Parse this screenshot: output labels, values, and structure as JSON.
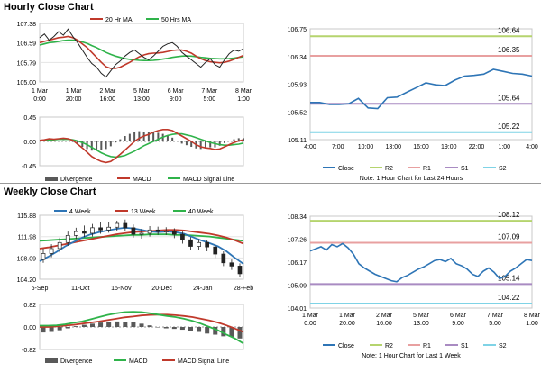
{
  "sections": {
    "hourly_title": "Hourly Close Chart",
    "weekly_title": "Weekly Close Chart"
  },
  "colors": {
    "close": "#2e75b6",
    "ma_short": "#c0392b",
    "ma_long": "#2fb34a",
    "r2": "#b5d46e",
    "r1": "#e8a0a0",
    "s1": "#a98bc2",
    "s2": "#7fd3e6",
    "divergence": "#595959",
    "candle": "#222222"
  },
  "chart_data": [
    {
      "id": "hourly_price",
      "type": "line",
      "legend": [
        "20 Hr MA",
        "50 Hrs MA"
      ],
      "y_ticks": [
        "107.38",
        "106.59",
        "105.79",
        "105.00"
      ],
      "ylim": [
        105.0,
        107.38
      ],
      "x_ticks": [
        "1 Mar\n0:00",
        "1 Mar\n20:00",
        "2 Mar\n16:00",
        "5 Mar\n13:00",
        "6 Mar\n9:00",
        "7 Mar\n5:00",
        "8 Mar\n1:00"
      ],
      "series": [
        {
          "name": "Close",
          "values": [
            106.8,
            106.95,
            106.7,
            106.85,
            107.05,
            106.9,
            107.15,
            106.85,
            106.6,
            106.3,
            106.0,
            105.75,
            105.6,
            105.35,
            105.2,
            105.45,
            105.7,
            105.85,
            106.05,
            106.2,
            106.3,
            106.15,
            106.0,
            105.9,
            106.05,
            106.25,
            106.45,
            106.55,
            106.6,
            106.45,
            106.2,
            106.05,
            105.9,
            105.75,
            105.6,
            105.8,
            105.95,
            105.7,
            105.6,
            105.9,
            106.15,
            106.3,
            106.25,
            106.35
          ]
        },
        {
          "name": "20 Hr MA",
          "values": [
            106.6,
            106.65,
            106.7,
            106.75,
            106.8,
            106.82,
            106.85,
            106.8,
            106.7,
            106.55,
            106.4,
            106.2,
            106.0,
            105.8,
            105.62,
            105.55,
            105.55,
            105.6,
            105.7,
            105.8,
            105.92,
            106.02,
            106.1,
            106.15,
            106.17,
            106.18,
            106.2,
            106.24,
            106.28,
            106.3,
            106.3,
            106.25,
            106.17,
            106.05,
            105.95,
            105.87,
            105.82,
            105.8,
            105.78,
            105.8,
            105.85,
            105.92,
            106.0,
            106.08
          ]
        },
        {
          "name": "50 Hrs MA",
          "values": [
            106.5,
            106.55,
            106.6,
            106.62,
            106.65,
            106.68,
            106.7,
            106.7,
            106.68,
            106.63,
            106.57,
            106.48,
            106.4,
            106.3,
            106.2,
            106.12,
            106.05,
            106.0,
            105.95,
            105.92,
            105.9,
            105.88,
            105.87,
            105.87,
            105.88,
            105.9,
            105.93,
            105.96,
            106.0,
            106.03,
            106.05,
            106.06,
            106.05,
            106.03,
            106.0,
            105.98,
            105.96,
            105.95,
            105.94,
            105.94,
            105.95,
            105.97,
            106.0,
            106.02
          ]
        }
      ]
    },
    {
      "id": "hourly_macd",
      "type": "line",
      "y_ticks": [
        "0.45",
        "0.00",
        "-0.45"
      ],
      "ylim": [
        -0.45,
        0.45
      ],
      "legend": [
        "Divergence",
        "MACD",
        "MACD Signal Line"
      ],
      "series": [
        {
          "name": "MACD",
          "values": [
            0.02,
            0.03,
            0.05,
            0.04,
            0.05,
            0.06,
            0.05,
            0.02,
            -0.05,
            -0.12,
            -0.2,
            -0.28,
            -0.33,
            -0.37,
            -0.39,
            -0.37,
            -0.31,
            -0.24,
            -0.16,
            -0.08,
            0.0,
            0.06,
            0.1,
            0.13,
            0.17,
            0.2,
            0.22,
            0.22,
            0.2,
            0.15,
            0.1,
            0.05,
            0.0,
            -0.06,
            -0.1,
            -0.12,
            -0.13,
            -0.15,
            -0.14,
            -0.1,
            -0.06,
            -0.02,
            0.01,
            0.03
          ]
        },
        {
          "name": "MACD Signal Line",
          "values": [
            0.02,
            0.02,
            0.03,
            0.03,
            0.04,
            0.04,
            0.04,
            0.03,
            0.01,
            -0.02,
            -0.06,
            -0.11,
            -0.16,
            -0.21,
            -0.25,
            -0.28,
            -0.29,
            -0.28,
            -0.26,
            -0.22,
            -0.18,
            -0.13,
            -0.08,
            -0.04,
            0.0,
            0.04,
            0.08,
            0.11,
            0.13,
            0.14,
            0.14,
            0.12,
            0.1,
            0.07,
            0.04,
            0.01,
            -0.02,
            -0.04,
            -0.06,
            -0.07,
            -0.07,
            -0.06,
            -0.05,
            -0.03
          ]
        },
        {
          "name": "Divergence",
          "values": [
            0.0,
            0.01,
            0.02,
            0.01,
            0.01,
            0.02,
            0.01,
            -0.01,
            -0.06,
            -0.1,
            -0.14,
            -0.17,
            -0.17,
            -0.16,
            -0.14,
            -0.09,
            -0.02,
            0.04,
            0.1,
            0.14,
            0.18,
            0.19,
            0.18,
            0.17,
            0.17,
            0.16,
            0.14,
            0.11,
            0.07,
            0.01,
            -0.04,
            -0.07,
            -0.1,
            -0.13,
            -0.14,
            -0.13,
            -0.11,
            -0.11,
            -0.08,
            -0.03,
            0.01,
            0.04,
            0.06,
            0.06
          ]
        }
      ]
    },
    {
      "id": "hourly_24h",
      "type": "line",
      "y_ticks": [
        "106.75",
        "106.34",
        "105.93",
        "105.52",
        "105.11"
      ],
      "ylim": [
        105.11,
        106.75
      ],
      "x_ticks": [
        "4:00",
        "7:00",
        "10:00",
        "13:00",
        "16:00",
        "19:00",
        "22:00",
        "1:00",
        "4:00"
      ],
      "levels": [
        {
          "name": "R2",
          "value": 106.64,
          "label": "106.64"
        },
        {
          "name": "R1",
          "value": 106.35,
          "label": "106.35"
        },
        {
          "name": "S1",
          "value": 105.64,
          "label": "105.64"
        },
        {
          "name": "S2",
          "value": 105.22,
          "label": "105.22"
        }
      ],
      "legend": [
        "Close",
        "R2",
        "R1",
        "S1",
        "S2"
      ],
      "note": "Note: 1 Hour Chart for Last 24 Hours",
      "series": [
        {
          "name": "Close",
          "values": [
            105.66,
            105.66,
            105.63,
            105.63,
            105.64,
            105.72,
            105.58,
            105.57,
            105.73,
            105.74,
            105.81,
            105.88,
            105.95,
            105.92,
            105.91,
            105.99,
            106.05,
            106.06,
            106.08,
            106.15,
            106.12,
            106.09,
            106.08,
            106.05
          ]
        }
      ]
    },
    {
      "id": "weekly_price",
      "type": "line",
      "legend": [
        "4 Week",
        "13 Week",
        "40 Week"
      ],
      "y_ticks": [
        "115.88",
        "111.98",
        "108.09",
        "104.20"
      ],
      "ylim": [
        104.2,
        115.88
      ],
      "x_ticks": [
        "6-Sep",
        "11-Oct",
        "15-Nov",
        "20-Dec",
        "24-Jan",
        "28-Feb"
      ],
      "candles": [
        {
          "open": 107.8,
          "close": 108.9,
          "high": 109.8,
          "low": 107.2
        },
        {
          "open": 108.9,
          "close": 109.8,
          "high": 110.6,
          "low": 108.2
        },
        {
          "open": 109.8,
          "close": 110.9,
          "high": 111.8,
          "low": 109.1
        },
        {
          "open": 110.9,
          "close": 112.2,
          "high": 112.9,
          "low": 110.3
        },
        {
          "open": 112.2,
          "close": 112.9,
          "high": 113.6,
          "low": 111.5
        },
        {
          "open": 112.9,
          "close": 112.6,
          "high": 114.0,
          "low": 111.9
        },
        {
          "open": 112.6,
          "close": 113.6,
          "high": 114.3,
          "low": 112.0
        },
        {
          "open": 113.6,
          "close": 113.2,
          "high": 114.7,
          "low": 112.5
        },
        {
          "open": 113.2,
          "close": 113.7,
          "high": 114.6,
          "low": 112.7
        },
        {
          "open": 113.7,
          "close": 114.4,
          "high": 114.9,
          "low": 113.0
        },
        {
          "open": 114.4,
          "close": 113.6,
          "high": 115.1,
          "low": 113.0
        },
        {
          "open": 113.6,
          "close": 112.4,
          "high": 114.2,
          "low": 111.8
        },
        {
          "open": 112.4,
          "close": 112.6,
          "high": 113.4,
          "low": 111.6
        },
        {
          "open": 112.6,
          "close": 113.2,
          "high": 113.9,
          "low": 112.0
        },
        {
          "open": 113.2,
          "close": 112.9,
          "high": 113.8,
          "low": 112.3
        },
        {
          "open": 112.9,
          "close": 113.0,
          "high": 113.7,
          "low": 112.3
        },
        {
          "open": 113.0,
          "close": 112.4,
          "high": 113.5,
          "low": 111.7
        },
        {
          "open": 112.4,
          "close": 111.4,
          "high": 112.9,
          "low": 110.7
        },
        {
          "open": 111.4,
          "close": 110.2,
          "high": 111.9,
          "low": 109.5
        },
        {
          "open": 110.2,
          "close": 110.9,
          "high": 111.5,
          "low": 109.6
        },
        {
          "open": 110.9,
          "close": 110.1,
          "high": 111.4,
          "low": 109.3
        },
        {
          "open": 110.1,
          "close": 108.8,
          "high": 110.5,
          "low": 108.1
        },
        {
          "open": 108.8,
          "close": 107.2,
          "high": 109.3,
          "low": 106.6
        },
        {
          "open": 107.2,
          "close": 106.6,
          "high": 107.8,
          "low": 105.9
        },
        {
          "open": 106.6,
          "close": 105.2,
          "high": 107.1,
          "low": 104.6
        }
      ],
      "series": [
        {
          "name": "4 Week",
          "values": [
            107.5,
            108.3,
            109.2,
            110.2,
            111.0,
            111.8,
            112.4,
            112.8,
            113.1,
            113.4,
            113.6,
            113.5,
            113.2,
            112.9,
            112.8,
            112.9,
            112.8,
            112.5,
            111.9,
            111.3,
            110.8,
            110.2,
            109.3,
            108.1,
            107.0
          ]
        },
        {
          "name": "13 Week",
          "values": [
            109.8,
            110.0,
            110.3,
            110.6,
            110.9,
            111.2,
            111.5,
            111.8,
            112.1,
            112.4,
            112.6,
            112.8,
            112.9,
            113.0,
            113.1,
            113.2,
            113.2,
            113.1,
            112.9,
            112.7,
            112.5,
            112.2,
            111.8,
            111.3,
            110.7
          ]
        },
        {
          "name": "40 Week",
          "values": [
            111.2,
            111.3,
            111.4,
            111.5,
            111.6,
            111.7,
            111.8,
            111.9,
            112.0,
            112.1,
            112.2,
            112.3,
            112.3,
            112.4,
            112.4,
            112.4,
            112.3,
            112.3,
            112.2,
            112.1,
            112.0,
            111.8,
            111.6,
            111.4,
            111.2
          ]
        }
      ]
    },
    {
      "id": "weekly_macd",
      "type": "line",
      "y_ticks": [
        "0.82",
        "0.00",
        "-0.82"
      ],
      "ylim": [
        -0.82,
        0.82
      ],
      "legend": [
        "Divergence",
        "MACD",
        "MACD Signal Line"
      ],
      "series": [
        {
          "name": "MACD",
          "values": [
            0.05,
            0.05,
            0.06,
            0.1,
            0.15,
            0.2,
            0.28,
            0.36,
            0.44,
            0.5,
            0.54,
            0.55,
            0.54,
            0.5,
            0.45,
            0.4,
            0.36,
            0.3,
            0.22,
            0.12,
            0.0,
            -0.12,
            -0.28,
            -0.42,
            -0.6
          ]
        },
        {
          "name": "MACD Signal Line",
          "values": [
            0.0,
            0.0,
            0.02,
            0.05,
            0.08,
            0.12,
            0.16,
            0.2,
            0.25,
            0.3,
            0.35,
            0.38,
            0.42,
            0.44,
            0.45,
            0.45,
            0.43,
            0.4,
            0.36,
            0.3,
            0.24,
            0.16,
            0.06,
            -0.06,
            -0.18
          ]
        },
        {
          "name": "Divergence",
          "values": [
            -0.2,
            -0.18,
            -0.12,
            -0.05,
            0.03,
            0.08,
            0.12,
            0.16,
            0.19,
            0.2,
            0.19,
            0.17,
            0.12,
            0.06,
            0.0,
            -0.05,
            -0.07,
            -0.1,
            -0.14,
            -0.18,
            -0.24,
            -0.28,
            -0.34,
            -0.36,
            -0.42
          ]
        }
      ]
    },
    {
      "id": "weekly_hourly",
      "type": "line",
      "y_ticks": [
        "108.34",
        "107.26",
        "106.17",
        "105.09",
        "104.01"
      ],
      "ylim": [
        104.01,
        108.34
      ],
      "x_ticks": [
        "1 Mar\n0:00",
        "1 Mar\n20:00",
        "2 Mar\n16:00",
        "5 Mar\n13:00",
        "6 Mar\n9:00",
        "7 Mar\n5:00",
        "8 Mar\n1:00"
      ],
      "levels": [
        {
          "name": "R2",
          "value": 108.12,
          "label": "108.12"
        },
        {
          "name": "R1",
          "value": 107.09,
          "label": "107.09"
        },
        {
          "name": "S1",
          "value": 105.14,
          "label": "105.14"
        },
        {
          "name": "S2",
          "value": 104.22,
          "label": "104.22"
        }
      ],
      "legend": [
        "Close",
        "R2",
        "R1",
        "S1",
        "S2"
      ],
      "note": "Note: 1 Hour Chart for Last 1 Week",
      "series": [
        {
          "name": "Close",
          "values": [
            106.7,
            106.8,
            106.9,
            106.75,
            107.0,
            106.9,
            107.05,
            106.85,
            106.55,
            106.1,
            105.9,
            105.75,
            105.6,
            105.5,
            105.4,
            105.3,
            105.25,
            105.45,
            105.55,
            105.7,
            105.85,
            105.95,
            106.1,
            106.25,
            106.3,
            106.2,
            106.35,
            106.1,
            106.0,
            105.85,
            105.6,
            105.5,
            105.75,
            105.9,
            105.7,
            105.4,
            105.5,
            105.75,
            105.9,
            106.1,
            106.3,
            106.25
          ]
        }
      ]
    }
  ]
}
